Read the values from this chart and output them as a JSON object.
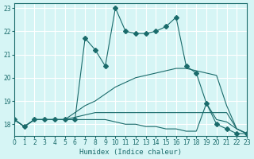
{
  "xlabel": "Humidex (Indice chaleur)",
  "xlim": [
    0,
    23
  ],
  "ylim": [
    17.5,
    23.2
  ],
  "yticks": [
    18,
    19,
    20,
    21,
    22,
    23
  ],
  "xticks": [
    0,
    1,
    2,
    3,
    4,
    5,
    6,
    7,
    8,
    9,
    10,
    11,
    12,
    13,
    14,
    15,
    16,
    17,
    18,
    19,
    20,
    21,
    22,
    23
  ],
  "bg_color": "#d6f5f5",
  "line_color": "#1a6b6b",
  "grid_color": "#ffffff",
  "lines": [
    {
      "x": [
        0,
        1,
        2,
        3,
        4,
        5,
        6,
        7,
        8,
        9,
        10,
        11,
        12,
        13,
        14,
        15,
        16,
        17,
        18,
        19,
        20,
        21,
        22,
        23
      ],
      "y": [
        18.2,
        17.9,
        18.2,
        18.2,
        18.2,
        18.2,
        18.2,
        21.7,
        21.2,
        20.5,
        23.0,
        22.0,
        21.9,
        21.9,
        22.0,
        22.2,
        22.6,
        20.5,
        20.2,
        18.9,
        18.0,
        17.8,
        17.6,
        17.6
      ],
      "marker": "D",
      "markersize": 3
    },
    {
      "x": [
        0,
        1,
        2,
        3,
        4,
        5,
        6,
        7,
        8,
        9,
        10,
        11,
        12,
        13,
        14,
        15,
        16,
        17,
        18,
        19,
        20,
        21,
        22,
        23
      ],
      "y": [
        18.2,
        17.9,
        18.2,
        18.2,
        18.2,
        18.2,
        18.5,
        18.8,
        19.0,
        19.3,
        19.6,
        19.8,
        20.0,
        20.1,
        20.2,
        20.3,
        20.4,
        20.4,
        20.3,
        20.2,
        20.1,
        18.8,
        17.8,
        17.6
      ],
      "marker": null,
      "markersize": 0
    },
    {
      "x": [
        0,
        1,
        2,
        3,
        4,
        5,
        6,
        7,
        8,
        9,
        10,
        11,
        12,
        13,
        14,
        15,
        16,
        17,
        18,
        19,
        20,
        21,
        22,
        23
      ],
      "y": [
        18.2,
        17.9,
        18.2,
        18.2,
        18.2,
        18.2,
        18.3,
        18.4,
        18.5,
        18.5,
        18.5,
        18.5,
        18.5,
        18.5,
        18.5,
        18.5,
        18.5,
        18.5,
        18.5,
        18.5,
        18.5,
        18.5,
        17.8,
        17.6
      ],
      "marker": null,
      "markersize": 0
    },
    {
      "x": [
        0,
        1,
        2,
        3,
        4,
        5,
        6,
        7,
        8,
        9,
        10,
        11,
        12,
        13,
        14,
        15,
        16,
        17,
        18,
        19,
        20,
        21,
        22,
        23
      ],
      "y": [
        18.2,
        17.9,
        18.2,
        18.2,
        18.2,
        18.2,
        18.2,
        18.2,
        18.2,
        18.2,
        18.1,
        18.0,
        18.0,
        17.9,
        17.9,
        17.8,
        17.8,
        17.7,
        17.7,
        18.9,
        18.2,
        18.1,
        17.8,
        17.6
      ],
      "marker": null,
      "markersize": 0
    }
  ]
}
